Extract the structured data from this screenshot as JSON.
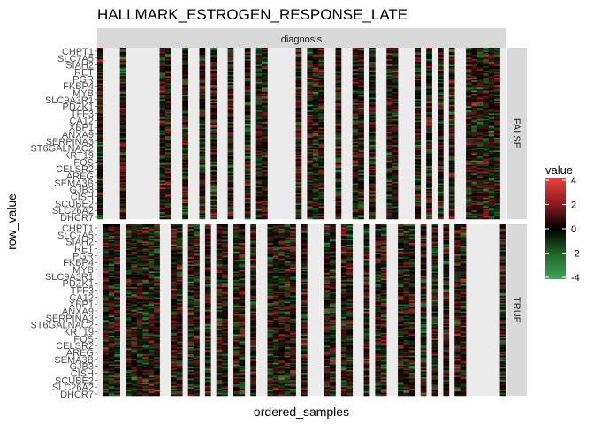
{
  "chart_data": {
    "type": "heatmap",
    "title": "HALLMARK_ESTROGEN_RESPONSE_LATE",
    "xlabel": "ordered_samples",
    "ylabel": "row_value",
    "column_strip": "diagnosis",
    "facets": [
      "FALSE",
      "TRUE"
    ],
    "y_tick_labels": [
      "CHPT1",
      "SLC7A5",
      "SIAH2",
      "RET",
      "PGR",
      "FKBP4",
      "MYB",
      "SLC9A3R1",
      "PDZK1",
      "TFF3",
      "CA12",
      "XBP1",
      "ANXA9",
      "SERPINA3",
      "ST6GALNAC2",
      "KRT19",
      "FOS",
      "CELSR2",
      "AREG",
      "SEMA3B",
      "GJB3",
      "CISH",
      "SCUBE2",
      "SLC26A2",
      "DHCR7"
    ],
    "legend": {
      "title": "value",
      "ticks": [
        4,
        2,
        0,
        -2,
        -4
      ],
      "colors": [
        "#e8403a",
        "#8e1a1f",
        "#000000",
        "#1f6628",
        "#42a35a"
      ]
    },
    "value_range": [
      -4.5,
      4.5
    ],
    "grid": false,
    "legend_position": "right",
    "n_rows": 120,
    "n_columns": 72,
    "columns_false": [
      0,
      4,
      11,
      12,
      15,
      18,
      20,
      23,
      26,
      28,
      29,
      35,
      37,
      38,
      39,
      42,
      45,
      46,
      48,
      51,
      52,
      56,
      58,
      60,
      62,
      65,
      66,
      67,
      68,
      69,
      70
    ],
    "columns_true": [
      1,
      2,
      3,
      5,
      6,
      7,
      8,
      9,
      10,
      13,
      14,
      16,
      17,
      19,
      21,
      22,
      24,
      25,
      27,
      30,
      31,
      32,
      33,
      34,
      36,
      40,
      41,
      43,
      44,
      47,
      49,
      50,
      53,
      54,
      55,
      57,
      59,
      61,
      63,
      64,
      71
    ]
  }
}
